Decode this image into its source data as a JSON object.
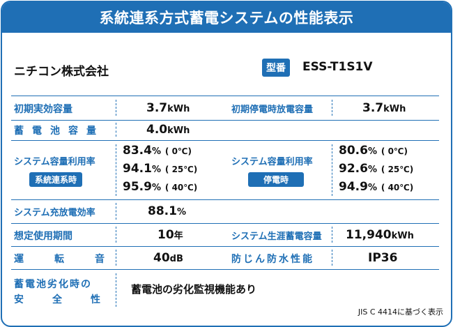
{
  "title": "系統連系方式蓄電システムの性能表示",
  "company": "ニチコン株式会社",
  "model": {
    "badge": "型番",
    "value": "ESS-T1S1V"
  },
  "rows": {
    "initial_capacity": {
      "label": "初期実効容量",
      "value": "3.7",
      "unit": "kWh"
    },
    "initial_outage_discharge": {
      "label": "初期停電時放電容量",
      "value": "3.7",
      "unit": "kWh"
    },
    "battery_capacity": {
      "label": "蓄電池容量",
      "value": "4.0",
      "unit": "kWh"
    },
    "utilization_grid": {
      "label": "システム容量利用率",
      "tag": "系統連系時",
      "entries": [
        {
          "value": "83.4",
          "unit": "%",
          "temp": "( 0℃)"
        },
        {
          "value": "94.1",
          "unit": "%",
          "temp": "( 25℃)"
        },
        {
          "value": "95.9",
          "unit": "%",
          "temp": "( 40℃)"
        }
      ]
    },
    "utilization_outage": {
      "label": "システム容量利用率",
      "tag": "停電時",
      "entries": [
        {
          "value": "80.6",
          "unit": "%",
          "temp": "( 0℃)"
        },
        {
          "value": "92.6",
          "unit": "%",
          "temp": "( 25℃)"
        },
        {
          "value": "94.9",
          "unit": "%",
          "temp": "( 40℃)"
        }
      ]
    },
    "charge_discharge_eff": {
      "label": "システム充放電効率",
      "value": "88.1",
      "unit": "%"
    },
    "expected_life": {
      "label": "想定使用期間",
      "value": "10",
      "unit": "年"
    },
    "lifetime_storage": {
      "label": "システム生涯蓄電容量",
      "value": "11,940",
      "unit": "kWh"
    },
    "noise": {
      "label": "運転音",
      "value": "40",
      "unit": "dB"
    },
    "waterproof": {
      "label": "防じん防水性能",
      "value": "IP36"
    },
    "degradation_safety": {
      "label_line1": "蓄電池劣化時の",
      "label_line2": "安全性",
      "value": "蓄電池の劣化監視機能あり"
    }
  },
  "footnote": "JIS C 4414に基づく表示"
}
